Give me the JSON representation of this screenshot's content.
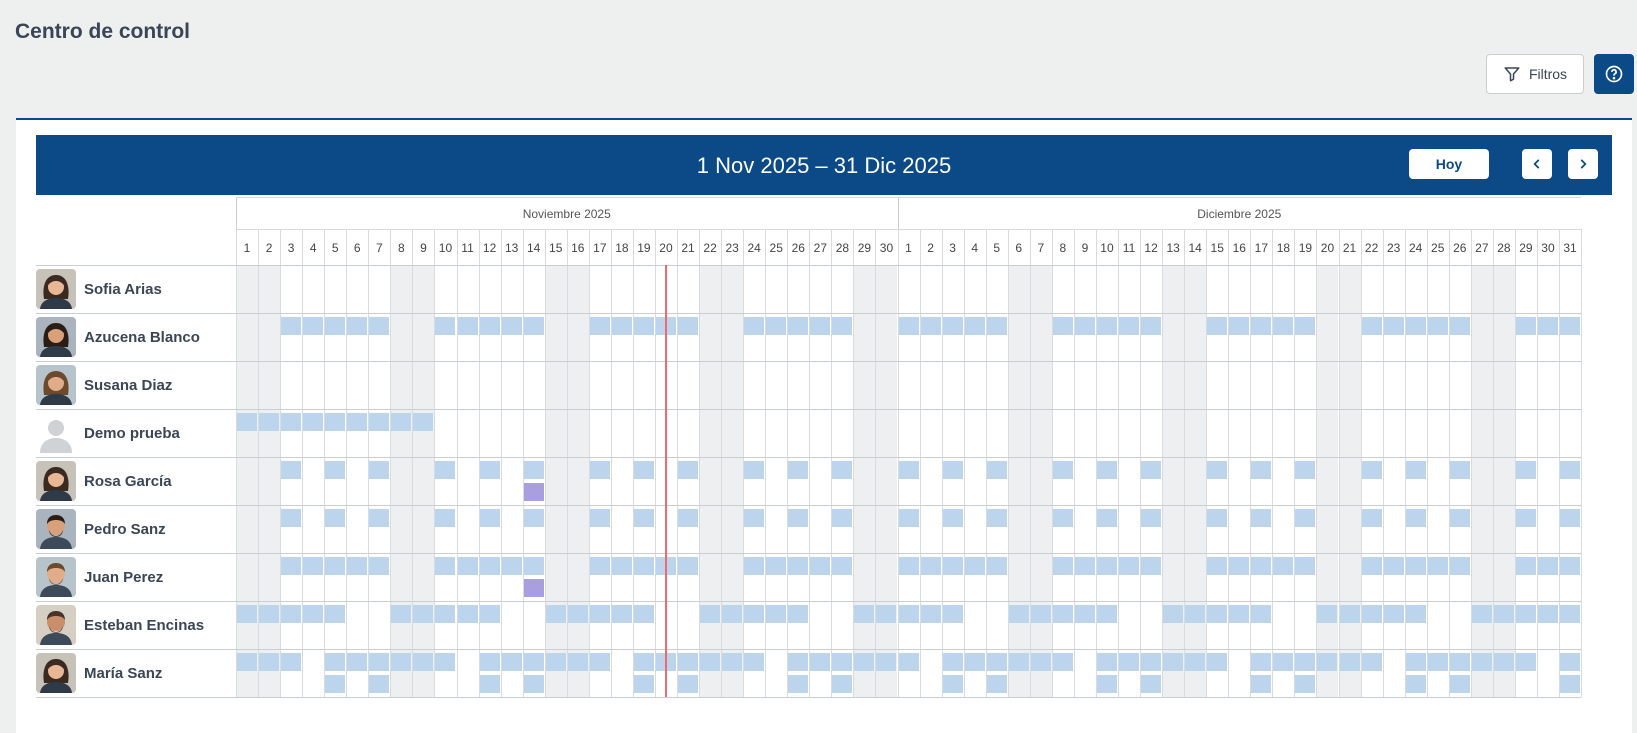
{
  "page": {
    "title": "Centro de control"
  },
  "toolbar": {
    "filters_label": "Filtros",
    "help_icon": "help-circle-icon",
    "filter_icon": "filter-icon"
  },
  "calendar": {
    "range_title": "1 Nov 2025 – 31 Dic 2025",
    "today_label": "Hoy",
    "months": [
      {
        "label": "Noviembre 2025",
        "days": 30
      },
      {
        "label": "Diciembre 2025",
        "days": 31
      }
    ],
    "today": {
      "month": 0,
      "day": 20
    },
    "colors": {
      "header": "#0b4a86",
      "shift": "#bcd5ec",
      "shift_alt": "#a99ee0",
      "today_line": "#f06a6a",
      "weekend": "#eeeff1"
    }
  },
  "employees": [
    {
      "name": "Sofia Arias",
      "avatar": "woman-avatar",
      "shifts": []
    },
    {
      "name": "Azucena Blanco",
      "avatar": "woman-avatar",
      "shifts": [
        3,
        4,
        5,
        6,
        7,
        10,
        11,
        12,
        13,
        14,
        17,
        18,
        19,
        20,
        21,
        24,
        25,
        26,
        27,
        28,
        31,
        32,
        33,
        34,
        35,
        38,
        39,
        40,
        41,
        42,
        45,
        46,
        47,
        48,
        49,
        52,
        53,
        54,
        55,
        56,
        59,
        60,
        61
      ]
    },
    {
      "name": "Susana Diaz",
      "avatar": "woman-avatar",
      "shifts": []
    },
    {
      "name": "Demo prueba",
      "avatar": "placeholder-avatar",
      "shifts": [
        1,
        2,
        3,
        4,
        5,
        6,
        7,
        8,
        9
      ]
    },
    {
      "name": "Rosa García",
      "avatar": "woman-avatar",
      "shifts": [
        3,
        5,
        7,
        10,
        12,
        14,
        17,
        19,
        21,
        24,
        26,
        28,
        31,
        33,
        35,
        38,
        40,
        42,
        45,
        47,
        49,
        52,
        54,
        56,
        59,
        61
      ],
      "alt": [
        14
      ]
    },
    {
      "name": "Pedro Sanz",
      "avatar": "man-avatar",
      "shifts": [
        3,
        5,
        7,
        10,
        12,
        14,
        17,
        19,
        21,
        24,
        26,
        28,
        31,
        33,
        35,
        38,
        40,
        42,
        45,
        47,
        49,
        52,
        54,
        56,
        59,
        61
      ]
    },
    {
      "name": "Juan Perez",
      "avatar": "man-avatar",
      "shifts": [
        3,
        4,
        5,
        6,
        7,
        10,
        11,
        12,
        13,
        14,
        17,
        18,
        19,
        20,
        21,
        24,
        25,
        26,
        27,
        28,
        31,
        32,
        33,
        34,
        35,
        38,
        39,
        40,
        41,
        42,
        45,
        46,
        47,
        48,
        49,
        52,
        53,
        54,
        55,
        56,
        59,
        60,
        61
      ],
      "alt": [
        14
      ]
    },
    {
      "name": "Esteban Encinas",
      "avatar": "man-avatar",
      "shifts": [
        1,
        2,
        3,
        4,
        5,
        8,
        9,
        10,
        11,
        12,
        15,
        16,
        17,
        18,
        19,
        22,
        23,
        24,
        25,
        26,
        29,
        30,
        31,
        32,
        33,
        36,
        37,
        38,
        39,
        40,
        43,
        44,
        45,
        46,
        47,
        50,
        51,
        52,
        53,
        54,
        57,
        58,
        59,
        60,
        61
      ]
    },
    {
      "name": "María Sanz",
      "avatar": "woman-avatar",
      "shifts": [
        1,
        2,
        3,
        5,
        6,
        7,
        8,
        9,
        10,
        12,
        13,
        14,
        15,
        16,
        17,
        19,
        20,
        21,
        22,
        23,
        24,
        26,
        27,
        28,
        29,
        30,
        31,
        33,
        34,
        35,
        36,
        37,
        38,
        40,
        41,
        42,
        43,
        44,
        45,
        47,
        48,
        49,
        50,
        51,
        52,
        54,
        55,
        56,
        57,
        58,
        59,
        61
      ],
      "second": [
        5,
        7,
        12,
        14,
        19,
        21,
        26,
        28,
        33,
        35,
        40,
        42,
        47,
        49,
        54,
        56,
        61
      ]
    }
  ]
}
